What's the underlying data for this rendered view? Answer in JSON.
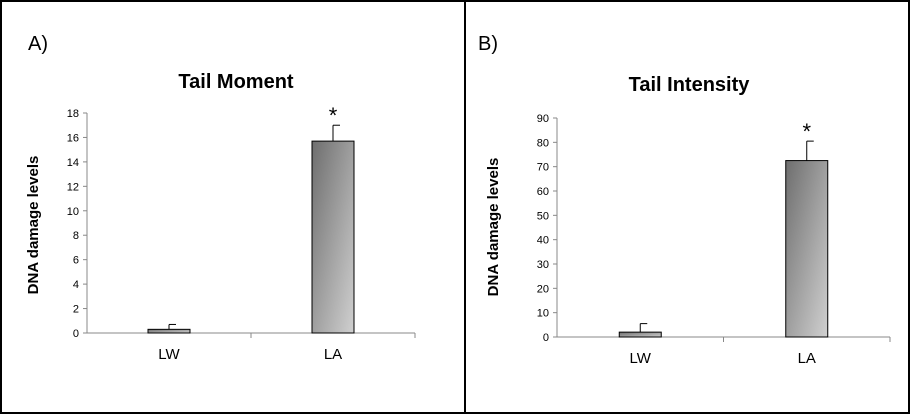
{
  "panels": [
    {
      "letter": "A)",
      "chart_data": {
        "type": "bar",
        "title": "Tail Moment",
        "ylabel": "DNA damage levels",
        "xlabel": "",
        "categories": [
          "LW",
          "LA"
        ],
        "values": [
          0.3,
          15.7
        ],
        "errors": [
          0.4,
          1.3
        ],
        "significance": [
          "",
          "*"
        ],
        "ylim": [
          0,
          18
        ],
        "yticks": [
          0,
          2,
          4,
          6,
          8,
          10,
          12,
          14,
          16,
          18
        ],
        "grid": false,
        "legend": "none"
      }
    },
    {
      "letter": "B)",
      "chart_data": {
        "type": "bar",
        "title": "Tail Intensity",
        "ylabel": "DNA damage levels",
        "xlabel": "",
        "categories": [
          "LW",
          "LA"
        ],
        "values": [
          2,
          72.5
        ],
        "errors": [
          3.5,
          8
        ],
        "significance": [
          "",
          "*"
        ],
        "ylim": [
          0,
          90
        ],
        "yticks": [
          0,
          10,
          20,
          30,
          40,
          50,
          60,
          70,
          80,
          90
        ],
        "grid": false,
        "legend": "none"
      }
    }
  ],
  "colors": {
    "bar_dark": "#6e6e6e",
    "bar_light": "#d0d0d0",
    "frame": "#000000"
  }
}
